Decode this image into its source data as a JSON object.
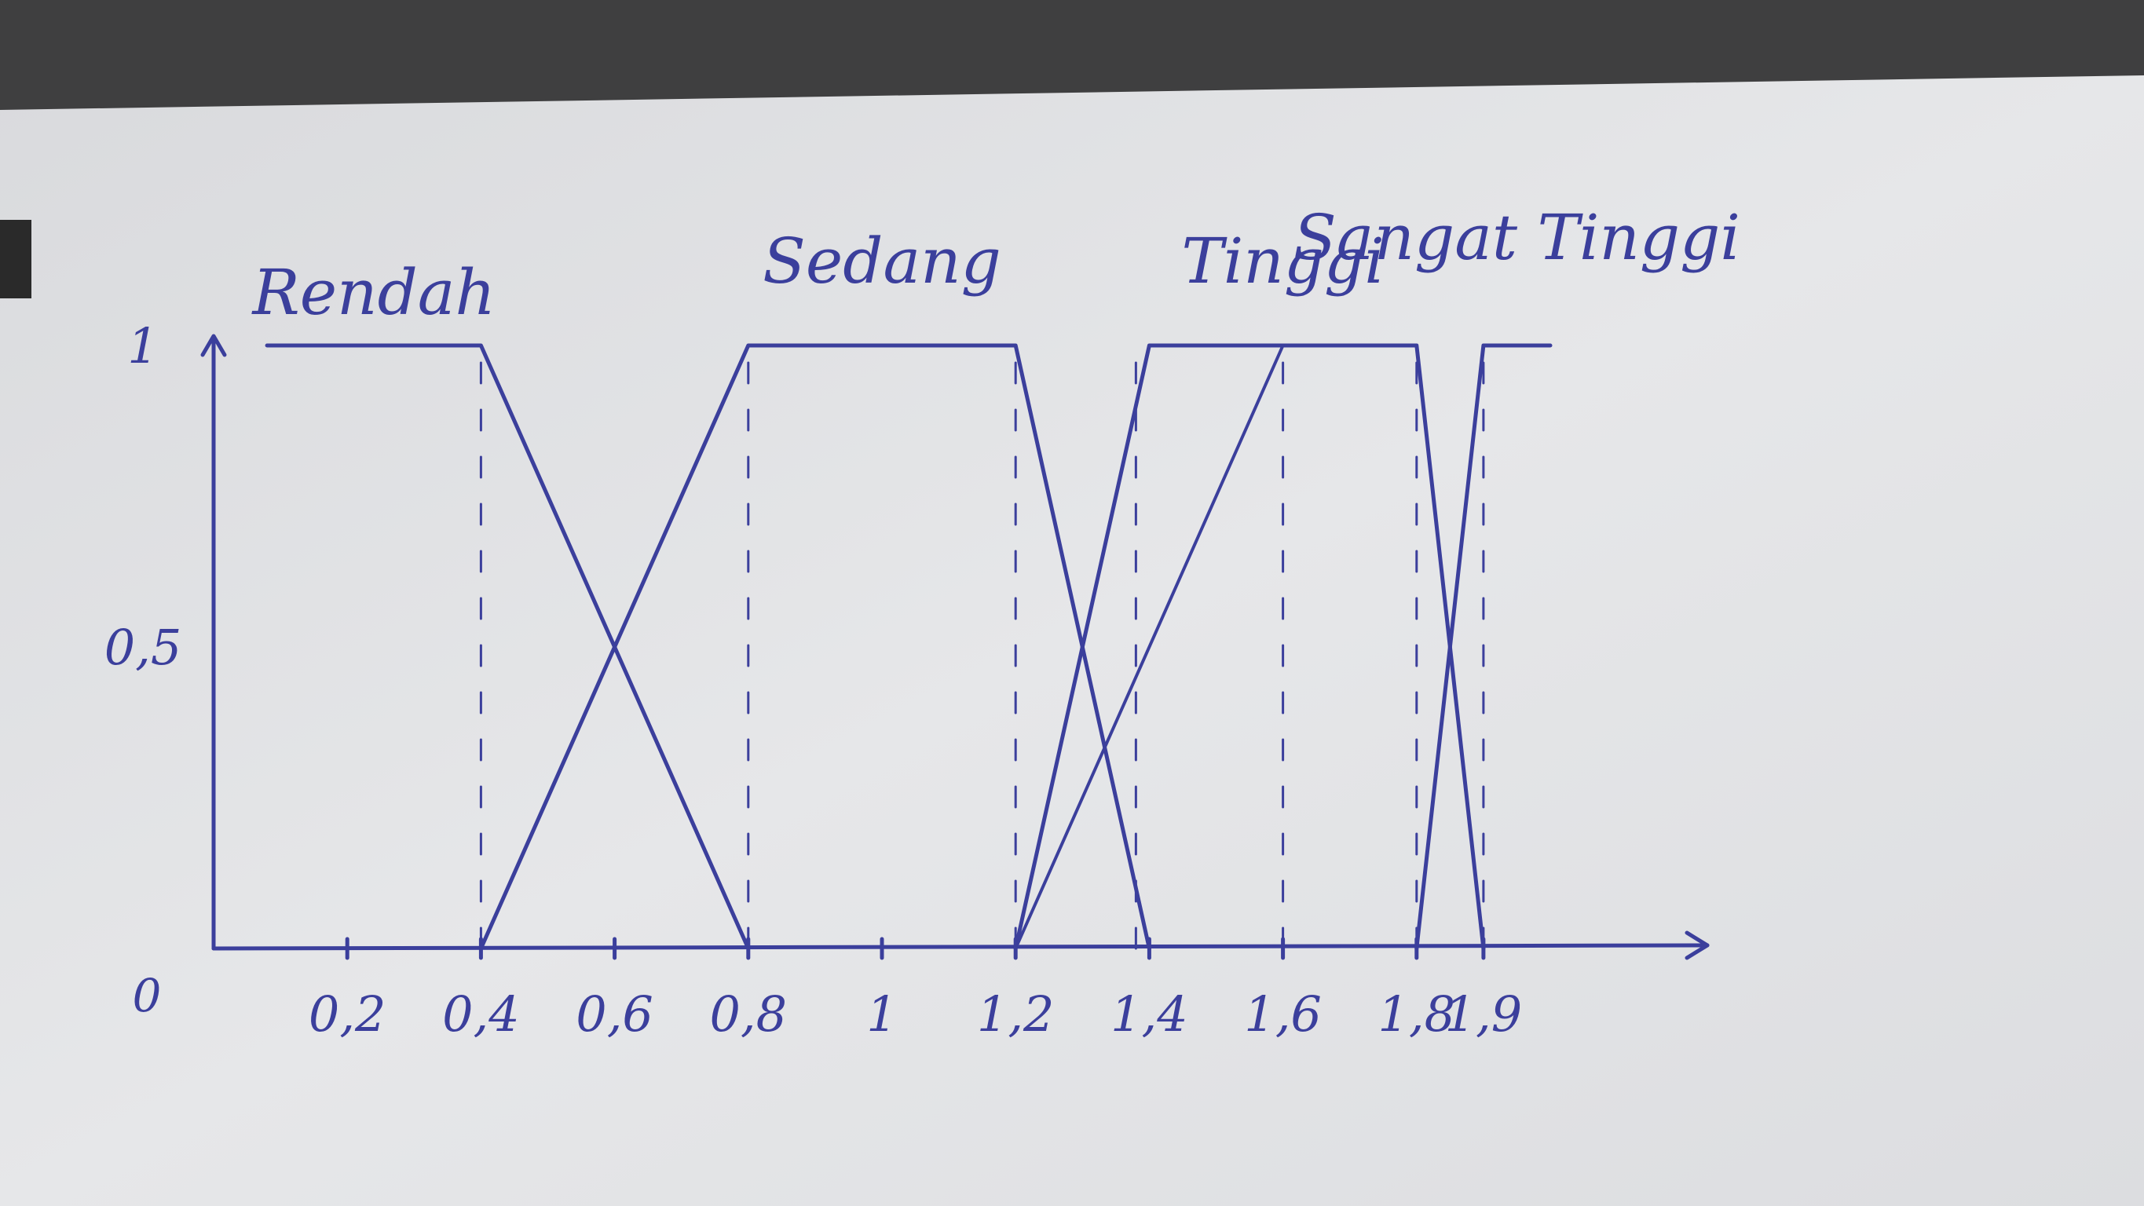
{
  "chart_data": {
    "type": "line",
    "title": "",
    "xlabel": "",
    "ylabel": "",
    "xlim": [
      0,
      2.0
    ],
    "ylim": [
      0,
      1
    ],
    "x_ticks": [
      {
        "value": 0.2,
        "label": "0,2"
      },
      {
        "value": 0.4,
        "label": "0,4"
      },
      {
        "value": 0.6,
        "label": "0,6"
      },
      {
        "value": 0.8,
        "label": "0,8"
      },
      {
        "value": 1.0,
        "label": "1"
      },
      {
        "value": 1.2,
        "label": "1,2"
      },
      {
        "value": 1.4,
        "label": "1,4"
      },
      {
        "value": 1.6,
        "label": "1,6"
      },
      {
        "value": 1.8,
        "label": "1,8"
      },
      {
        "value": 1.9,
        "label": "1,9"
      }
    ],
    "origin_label": "0",
    "y_ticks": [
      {
        "value": 0.5,
        "label": "0,5"
      },
      {
        "value": 1,
        "label": "1"
      }
    ],
    "series": [
      {
        "name": "Rendah",
        "x": [
          0.08,
          0.4,
          0.8
        ],
        "y": [
          1,
          1,
          0
        ]
      },
      {
        "name": "Sedang",
        "x": [
          0.4,
          0.8,
          1.2,
          1.4
        ],
        "y": [
          0,
          1,
          1,
          0
        ]
      },
      {
        "name": "Tinggi",
        "x": [
          1.2,
          1.4,
          1.6,
          1.8,
          1.9
        ],
        "y": [
          0,
          1,
          1,
          1,
          0
        ]
      },
      {
        "name": "Sangat Tinggi",
        "x": [
          1.8,
          1.9,
          2.0
        ],
        "y": [
          0,
          1,
          1
        ]
      }
    ],
    "extra_lines": [
      {
        "x": [
          1.2,
          1.6
        ],
        "y": [
          0,
          1
        ]
      }
    ],
    "dashed_verticals": [
      0.4,
      0.8,
      1.2,
      1.38,
      1.6,
      1.8,
      1.9
    ],
    "grid": false,
    "legend": "none",
    "line_color": "#3b3f9c",
    "paper_color": "#e4e5e7"
  }
}
